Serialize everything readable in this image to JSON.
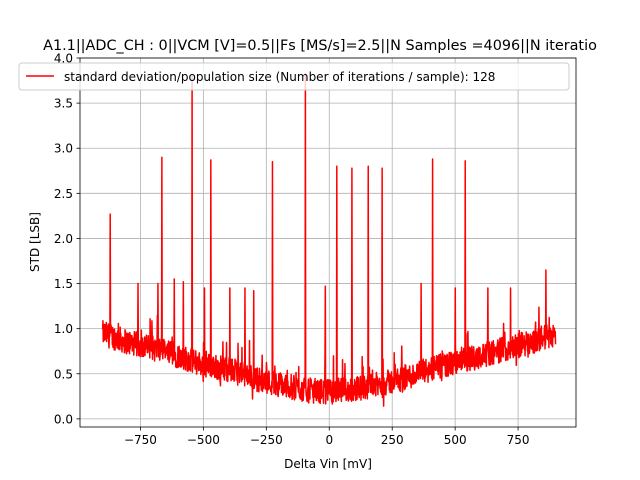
{
  "chart_data": {
    "type": "line",
    "title": "A1.1||ADC_CH : 0||VCM [V]=0.5||Fs [MS/s]=2.5||N Samples =4096||N iteratio",
    "xlabel": "Delta Vin [mV]",
    "ylabel": "STD [LSB]",
    "xlim": [
      -990,
      980
    ],
    "ylim": [
      -0.09,
      4.0
    ],
    "xticks": [
      -750,
      -500,
      -250,
      0,
      250,
      500,
      750
    ],
    "xtick_labels": [
      "−750",
      "−500",
      "−250",
      "0",
      "250",
      "500",
      "750"
    ],
    "yticks": [
      0.0,
      0.5,
      1.0,
      1.5,
      2.0,
      2.5,
      3.0,
      3.5,
      4.0
    ],
    "ytick_labels": [
      "0.0",
      "0.5",
      "1.0",
      "1.5",
      "2.0",
      "2.5",
      "3.0",
      "3.5",
      "4.0"
    ],
    "grid": true,
    "legend_position": "top-right",
    "series": [
      {
        "name": "standard deviation/population size (Number of iterations / sample): 128",
        "color": "#ff0000",
        "x_range": [
          -900,
          900
        ],
        "baseline": [
          [
            -900,
            0.95
          ],
          [
            -800,
            0.85
          ],
          [
            -700,
            0.78
          ],
          [
            -600,
            0.7
          ],
          [
            -500,
            0.6
          ],
          [
            -400,
            0.55
          ],
          [
            -300,
            0.45
          ],
          [
            -200,
            0.38
          ],
          [
            -100,
            0.32
          ],
          [
            0,
            0.3
          ],
          [
            100,
            0.33
          ],
          [
            200,
            0.38
          ],
          [
            300,
            0.45
          ],
          [
            400,
            0.55
          ],
          [
            500,
            0.62
          ],
          [
            600,
            0.7
          ],
          [
            700,
            0.78
          ],
          [
            800,
            0.85
          ],
          [
            900,
            0.95
          ]
        ],
        "spikes": [
          [
            -870,
            2.27
          ],
          [
            -760,
            1.5
          ],
          [
            -680,
            1.5
          ],
          [
            -665,
            2.9
          ],
          [
            -615,
            1.55
          ],
          [
            -580,
            1.52
          ],
          [
            -545,
            3.8
          ],
          [
            -495,
            1.45
          ],
          [
            -470,
            2.87
          ],
          [
            -395,
            1.45
          ],
          [
            -335,
            1.45
          ],
          [
            -300,
            1.42
          ],
          [
            -225,
            2.85
          ],
          [
            -95,
            3.83
          ],
          [
            -15,
            1.47
          ],
          [
            30,
            2.8
          ],
          [
            90,
            2.78
          ],
          [
            155,
            2.8
          ],
          [
            210,
            2.78
          ],
          [
            365,
            1.5
          ],
          [
            410,
            2.88
          ],
          [
            500,
            1.45
          ],
          [
            540,
            2.86
          ],
          [
            630,
            1.45
          ],
          [
            720,
            1.45
          ],
          [
            860,
            1.65
          ]
        ]
      }
    ]
  }
}
